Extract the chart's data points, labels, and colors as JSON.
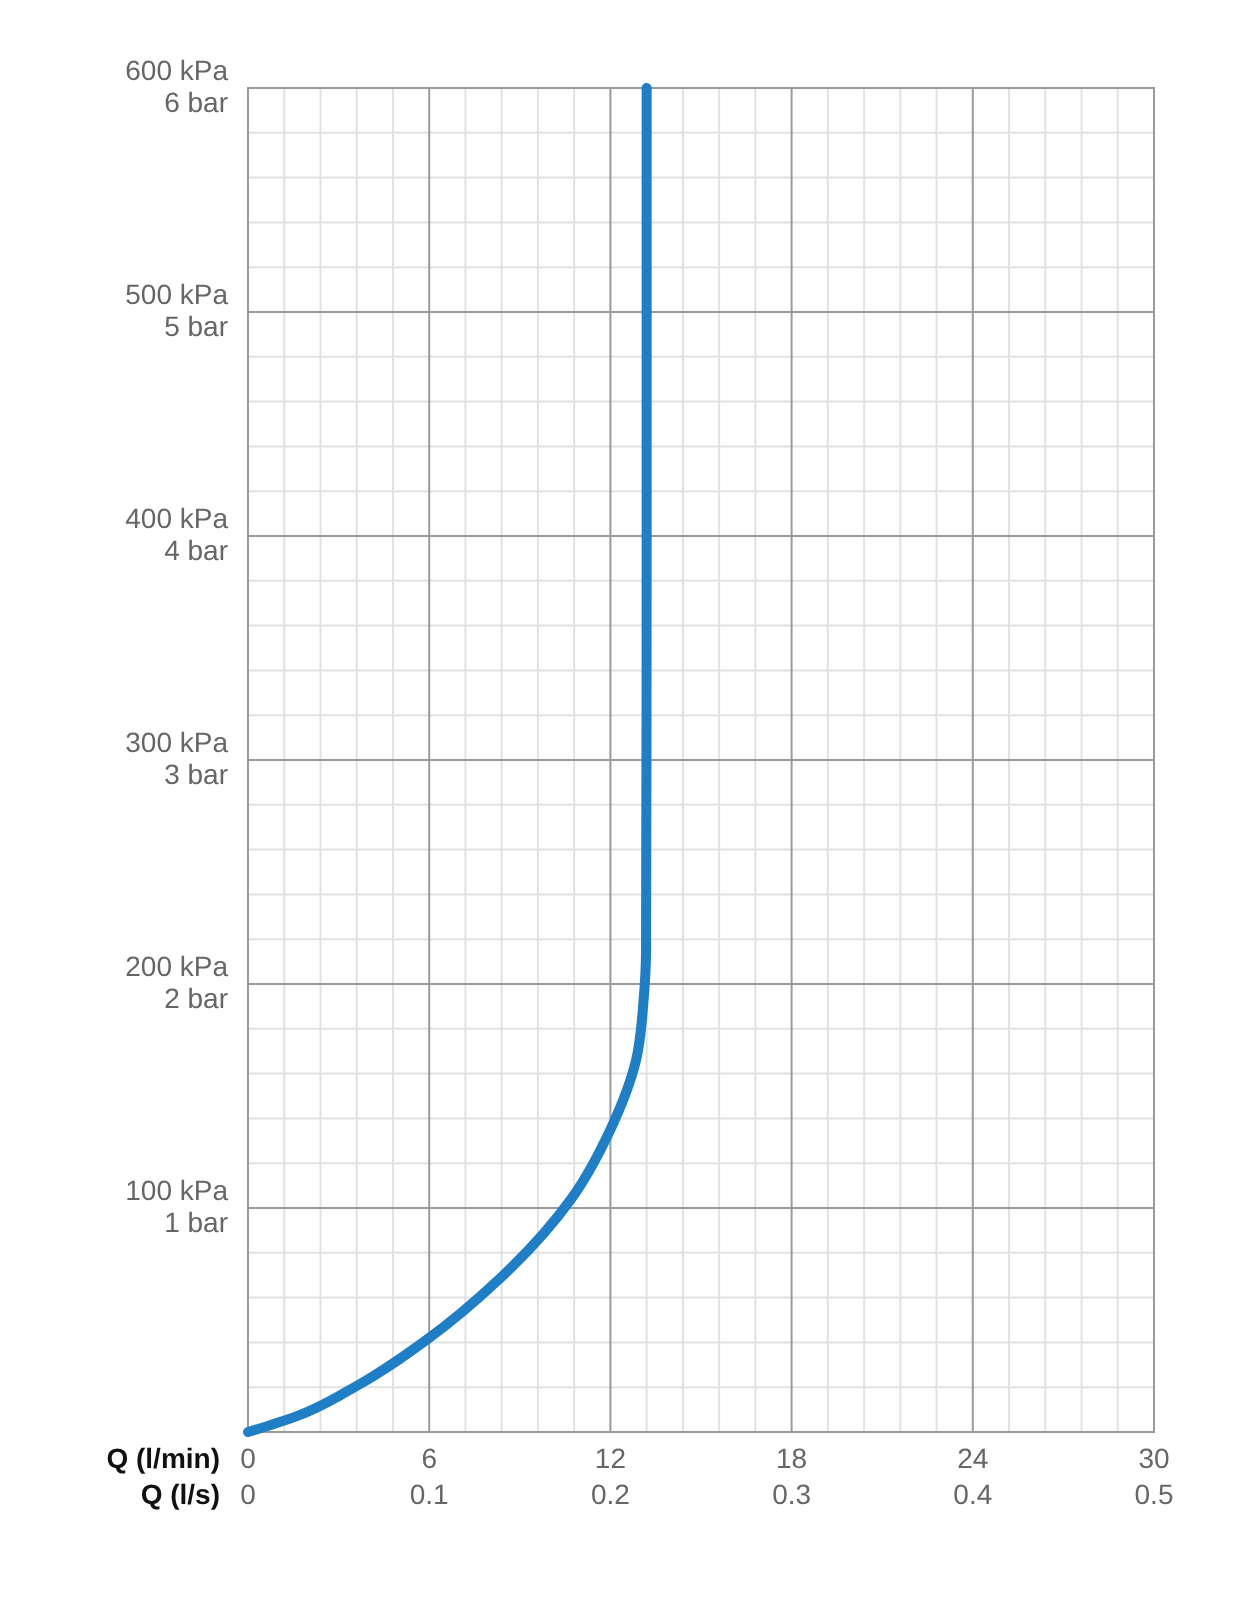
{
  "chart_data": {
    "type": "line",
    "xlabel": "Q (l/min)",
    "x2label": "Q (l/s)",
    "xlim": [
      0,
      30
    ],
    "xticks": [
      0,
      6,
      12,
      18,
      24,
      30
    ],
    "x2lim": [
      0,
      0.5
    ],
    "x2ticks": [
      0,
      0.1,
      0.2,
      0.3,
      0.4,
      0.5
    ],
    "ylim": [
      0,
      600
    ],
    "yticks": [
      {
        "value": 100,
        "label": "100 kPa"
      },
      {
        "value": 200,
        "label": "200 kPa"
      },
      {
        "value": 300,
        "label": "300 kPa"
      },
      {
        "value": 400,
        "label": "400 kPa"
      },
      {
        "value": 500,
        "label": "500 kPa"
      },
      {
        "value": 600,
        "label": "600 kPa"
      }
    ],
    "y2lim": [
      0,
      6
    ],
    "y2ticks": [
      {
        "value": 1,
        "label": "1 bar"
      },
      {
        "value": 2,
        "label": "2 bar"
      },
      {
        "value": 3,
        "label": "3 bar"
      },
      {
        "value": 4,
        "label": "4 bar"
      },
      {
        "value": 5,
        "label": "5 bar"
      },
      {
        "value": 6,
        "label": "6 bar"
      }
    ],
    "grid": true,
    "line_style": "solid",
    "series": [
      {
        "color": "#1f7fc6",
        "x": [
          0,
          1.6,
          3.4,
          5.9,
          8.3,
          10.7,
          12.0,
          12.85,
          13.1,
          13.18,
          13.2,
          13.2
        ],
        "values": [
          0,
          7,
          19,
          41,
          68,
          104,
          135,
          166,
          193,
          215,
          400,
          600
        ]
      }
    ]
  }
}
